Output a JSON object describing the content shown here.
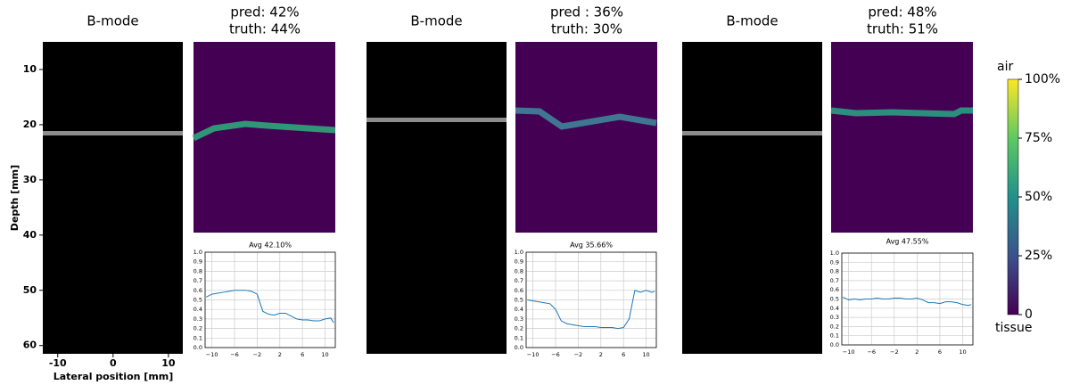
{
  "figure": {
    "depth_axis": {
      "label": "Depth [mm]",
      "ylim": [
        5,
        61.5
      ],
      "yticks": [
        10,
        20,
        30,
        40,
        50,
        60
      ]
    },
    "lateral_axis": {
      "label": "Lateral position [mm]",
      "xlim": [
        -12.7,
        12.6
      ],
      "xticks": [
        -10,
        0,
        10
      ]
    }
  },
  "panels": [
    {
      "bmode_title": "B-mode",
      "pred_title": "pred: 42%",
      "truth_title": "truth: 44%"
    },
    {
      "bmode_title": "B-mode",
      "pred_title": "pred : 36%",
      "truth_title": "truth: 30%"
    },
    {
      "bmode_title": "B-mode",
      "pred_title": "pred: 48%",
      "truth_title": "truth: 51%"
    }
  ],
  "colorbar": {
    "top_label": "air",
    "bottom_label": "tissue",
    "ylim": [
      0,
      100
    ],
    "yticks": [
      0,
      {
        "value": 25,
        "label": "25%"
      },
      {
        "value": 50,
        "label": "50%"
      },
      {
        "value": 75,
        "label": "75%"
      },
      {
        "value": 100,
        "label": "100%"
      }
    ]
  },
  "chart_data": [
    {
      "type": "line",
      "title": "Avg 42.10%",
      "x": [
        -11,
        -10,
        -9,
        -8,
        -7,
        -6,
        -5,
        -4,
        -3,
        -2,
        -1,
        0,
        1,
        2,
        3,
        4,
        5,
        6,
        7,
        8,
        9,
        10,
        11,
        11.5
      ],
      "series": [
        {
          "color": "#1f77b4",
          "values": [
            0.53,
            0.56,
            0.57,
            0.58,
            0.59,
            0.6,
            0.6,
            0.6,
            0.59,
            0.56,
            0.38,
            0.35,
            0.34,
            0.36,
            0.36,
            0.33,
            0.3,
            0.29,
            0.29,
            0.28,
            0.28,
            0.3,
            0.31,
            0.26
          ]
        }
      ],
      "xlim": [
        -11.2,
        11.8
      ],
      "ylim": [
        0,
        1
      ],
      "grid": true,
      "xticks": [
        {
          "value": -10,
          "label": "−10"
        },
        {
          "value": -6,
          "label": "−6"
        },
        {
          "value": -2,
          "label": "−2"
        },
        2,
        6,
        10
      ],
      "yticks": [
        {
          "value": 0,
          "label": "0.0"
        },
        0.1,
        0.2,
        0.3,
        0.4,
        0.5,
        0.6,
        0.7,
        0.8,
        0.9,
        {
          "value": 1,
          "label": "1.0"
        }
      ]
    },
    {
      "type": "line",
      "title": "Avg 35.66%",
      "x": [
        -11,
        -10,
        -9,
        -8,
        -7,
        -6,
        -5,
        -4,
        -3,
        -2,
        -1,
        0,
        1,
        2,
        3,
        4,
        5,
        6,
        7,
        8,
        9,
        10,
        11,
        11.5
      ],
      "series": [
        {
          "color": "#1f77b4",
          "values": [
            0.5,
            0.49,
            0.48,
            0.47,
            0.46,
            0.4,
            0.28,
            0.25,
            0.24,
            0.23,
            0.22,
            0.22,
            0.22,
            0.21,
            0.21,
            0.21,
            0.2,
            0.21,
            0.3,
            0.6,
            0.58,
            0.6,
            0.58,
            0.59
          ]
        }
      ],
      "xlim": [
        -11.2,
        11.8
      ],
      "ylim": [
        0,
        1
      ],
      "grid": true,
      "xticks": [
        {
          "value": -10,
          "label": "−10"
        },
        {
          "value": -6,
          "label": "−6"
        },
        {
          "value": -2,
          "label": "−2"
        },
        2,
        6,
        10
      ],
      "yticks": [
        {
          "value": 0,
          "label": "0.0"
        },
        0.1,
        0.2,
        0.3,
        0.4,
        0.5,
        0.6,
        0.7,
        0.8,
        0.9,
        {
          "value": 1,
          "label": "1.0"
        }
      ]
    },
    {
      "type": "line",
      "title": "Avg 47.55%",
      "x": [
        -11,
        -10,
        -9,
        -8,
        -7,
        -6,
        -5,
        -4,
        -3,
        -2,
        -1,
        0,
        1,
        2,
        3,
        4,
        5,
        6,
        7,
        8,
        9,
        10,
        11,
        11.5
      ],
      "series": [
        {
          "color": "#1f77b4",
          "values": [
            0.52,
            0.49,
            0.5,
            0.49,
            0.5,
            0.5,
            0.51,
            0.5,
            0.5,
            0.51,
            0.51,
            0.5,
            0.5,
            0.51,
            0.49,
            0.46,
            0.46,
            0.45,
            0.47,
            0.47,
            0.46,
            0.44,
            0.43,
            0.44
          ]
        }
      ],
      "xlim": [
        -11.2,
        11.8
      ],
      "ylim": [
        0,
        1
      ],
      "grid": true,
      "xticks": [
        {
          "value": -10,
          "label": "−10"
        },
        {
          "value": -6,
          "label": "−6"
        },
        {
          "value": -2,
          "label": "−2"
        },
        2,
        6,
        10
      ],
      "yticks": [
        {
          "value": 0,
          "label": "0.0"
        },
        0.1,
        0.2,
        0.3,
        0.4,
        0.5,
        0.6,
        0.7,
        0.8,
        0.9,
        {
          "value": 1,
          "label": "1.0"
        }
      ]
    }
  ]
}
